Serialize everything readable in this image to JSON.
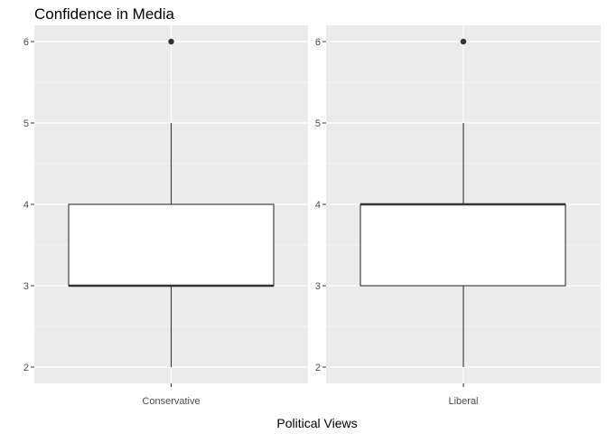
{
  "chart_data": {
    "type": "boxplot",
    "title": "Confidence in Media",
    "xlabel": "Political Views",
    "ylabel": "",
    "ylim": [
      1.8,
      6.2
    ],
    "yticks": [
      2,
      3,
      4,
      5,
      6
    ],
    "facets": [
      {
        "category": "Conservative",
        "stats": {
          "min": 2,
          "q1": 3,
          "median": 3,
          "q3": 4,
          "max": 5,
          "outliers": [
            6
          ]
        }
      },
      {
        "category": "Liberal",
        "stats": {
          "min": 2,
          "q1": 3,
          "median": 4,
          "q3": 4,
          "max": 5,
          "outliers": [
            6
          ]
        }
      }
    ],
    "grid": true,
    "panel_color": "#ebebeb",
    "box_fill": "#ffffff",
    "line_color": "#333333"
  }
}
